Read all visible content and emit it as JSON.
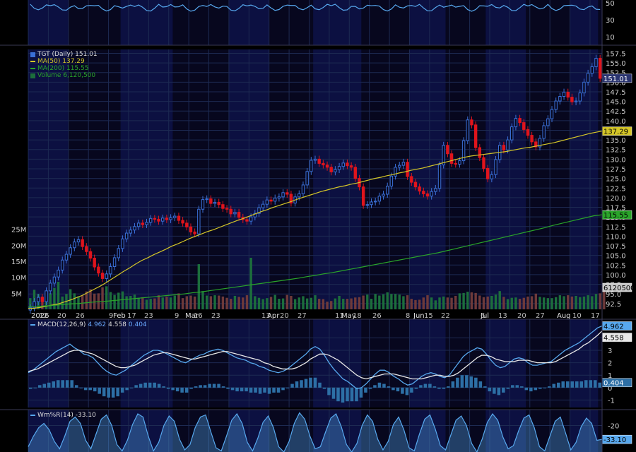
{
  "colors": {
    "background": "#000000",
    "pane": "#07071e",
    "grid": "#1d2a52",
    "band": "#10175e",
    "up": "#3a6fd6",
    "down": "#e0141c",
    "ma50": "#d4c628",
    "ma200": "#2aa52a",
    "vol_up": "#1c6e3c",
    "vol_down": "#6e3a3a",
    "macd": "#57a8ee",
    "signal": "#e8e8e8",
    "hist": "#2d6fa5",
    "willr": "#57a8ee",
    "text": "#cfcfcf"
  },
  "legend": {
    "price": {
      "icon": "candlestick-icon",
      "label": "TGT (Daily) 151.01"
    },
    "ma50": {
      "label": "MA(50) 137.29"
    },
    "ma200": {
      "label": "MA(200) 115.55"
    },
    "volume": {
      "icon": "volume-bars-icon",
      "label": "Volume 6,120,500"
    },
    "macd": {
      "label": "MACD(12,26,9)",
      "v1": "4.962",
      "v2": "4.558",
      "v3": "0.404"
    },
    "willr": {
      "icon": "line-icon",
      "label": "Wm%R(14) -33.10"
    }
  },
  "axis": {
    "price_ticks": [
      "157.5",
      "155.0",
      "152.5",
      "150.0",
      "147.5",
      "145.0",
      "142.5",
      "140.0",
      "137.5",
      "135.0",
      "132.5",
      "130.0",
      "127.5",
      "125.0",
      "122.5",
      "120.0",
      "117.5",
      "115.0",
      "112.5",
      "110.0",
      "107.5",
      "105.0",
      "102.5",
      "100.0",
      "97.5",
      "95.0",
      "92.5"
    ],
    "volume_ticks": [
      "25M",
      "20M",
      "15M",
      "10M",
      "5M"
    ],
    "macd_ticks": [
      "4",
      "3",
      "2",
      "1",
      "0",
      "-1"
    ],
    "willr_ticks": [
      "-20"
    ],
    "top_ticks": [
      "50",
      "30",
      "10"
    ],
    "month_labels": [
      "2026",
      "Feb",
      "Mar",
      "Apr",
      "May",
      "Jun",
      "Jul",
      "Aug"
    ],
    "day_labels": [
      "12",
      "20",
      "26",
      "9",
      "17",
      "23",
      "9",
      "16",
      "23",
      "13",
      "20",
      "27",
      "11",
      "18",
      "26",
      "8",
      "15",
      "22",
      "6",
      "13",
      "20",
      "27",
      "10",
      "17"
    ]
  },
  "badges": {
    "price": "151.01",
    "ma50": "137.29",
    "ma200": "115.55",
    "volume": "6120500",
    "macd1": "4.962",
    "macd2": "4.558",
    "macd3": "0.404",
    "willr": "-33.10"
  },
  "chart_data": [
    {
      "type": "candlestick",
      "title": "TGT (Daily)",
      "ylim": [
        91,
        158.5
      ],
      "last_close": 151.01,
      "closes": [
        91.4,
        93.0,
        94.1,
        93.0,
        95.8,
        97.8,
        99.4,
        101.2,
        103.8,
        105.3,
        107.0,
        108.5,
        109.1,
        107.3,
        106.0,
        104.3,
        102.0,
        100.4,
        99.0,
        100.2,
        102.1,
        104.4,
        106.8,
        109.3,
        110.8,
        111.6,
        112.5,
        113.4,
        113.0,
        113.6,
        114.6,
        114.4,
        113.9,
        114.7,
        114.3,
        114.8,
        115.2,
        114.1,
        113.4,
        112.4,
        111.1,
        110.6,
        117.0,
        119.5,
        119.7,
        118.5,
        118.8,
        118.2,
        117.2,
        117.0,
        115.8,
        116.2,
        114.9,
        114.3,
        113.9,
        115.0,
        115.9,
        117.4,
        118.3,
        119.4,
        119.1,
        119.9,
        120.2,
        121.3,
        120.9,
        118.6,
        120.2,
        121.0,
        123.3,
        126.8,
        129.7,
        130.0,
        128.9,
        128.5,
        127.9,
        126.7,
        127.3,
        128.1,
        129.0,
        128.3,
        127.9,
        125.0,
        122.8,
        118.0,
        118.2,
        118.9,
        119.1,
        120.4,
        120.9,
        123.0,
        125.6,
        127.9,
        128.4,
        129.2,
        125.5,
        124.0,
        122.8,
        121.7,
        121.0,
        120.4,
        121.6,
        122.4,
        128.5,
        133.6,
        131.4,
        128.9,
        128.7,
        129.6,
        134.8,
        140.2,
        138.9,
        133.0,
        130.4,
        127.6,
        124.9,
        126.0,
        129.9,
        133.6,
        132.4,
        135.0,
        138.4,
        140.6,
        139.5,
        137.7,
        136.2,
        134.5,
        133.2,
        135.4,
        138.7,
        140.5,
        142.9,
        145.1,
        146.3,
        147.4,
        146.1,
        144.9,
        145.1,
        147.2,
        150.0,
        152.3,
        154.0,
        156.2,
        151.0
      ]
    },
    {
      "type": "line",
      "series": [
        {
          "name": "MA(50)",
          "values": [
            91.2,
            91.3,
            91.5,
            91.8,
            92.1,
            92.4,
            92.9,
            93.4,
            94.0,
            94.6,
            95.4,
            96.2,
            97.0,
            97.9,
            98.9,
            99.9,
            100.9,
            101.8,
            102.8,
            103.7,
            104.4,
            105.2,
            105.9,
            106.6,
            107.4,
            108.0,
            108.7,
            109.4,
            110.0,
            110.6,
            111.2,
            111.7,
            112.3,
            112.9,
            113.5,
            114.1,
            114.6,
            115.2,
            115.8,
            116.4,
            116.9,
            117.5,
            118.0,
            118.5,
            119.0,
            119.6,
            120.1,
            120.6,
            121.1,
            121.6,
            122.0,
            122.4,
            122.8,
            123.1,
            123.5,
            123.8,
            124.2,
            124.6,
            125.0,
            125.3,
            125.7,
            126.0,
            126.4,
            126.7,
            127.1,
            127.4,
            127.7,
            128.1,
            128.5,
            128.9,
            129.3,
            129.7,
            130.1,
            130.5,
            130.8,
            131.0,
            131.2,
            131.4,
            131.6,
            131.8,
            132.0,
            132.3,
            132.6,
            132.9,
            133.1,
            133.4,
            133.7,
            134.0,
            134.3,
            134.7,
            135.1,
            135.5,
            135.9,
            136.3,
            136.7,
            137.0,
            137.29
          ]
        },
        {
          "name": "MA(200)",
          "values": [
            91.6,
            91.7,
            91.9,
            92.0,
            92.2,
            92.4,
            92.5,
            92.7,
            92.9,
            93.0,
            93.2,
            93.4,
            93.6,
            93.8,
            94.0,
            94.2,
            94.4,
            94.6,
            94.8,
            95.0,
            95.3,
            95.5,
            95.8,
            96.1,
            96.4,
            96.7,
            97.0,
            97.3,
            97.6,
            97.9,
            98.2,
            98.5,
            98.8,
            99.1,
            99.5,
            99.8,
            100.2,
            100.5,
            100.9,
            101.3,
            101.7,
            102.1,
            102.5,
            102.9,
            103.3,
            103.7,
            104.1,
            104.5,
            104.9,
            105.3,
            105.7,
            106.2,
            106.7,
            107.2,
            107.7,
            108.2,
            108.7,
            109.2,
            109.7,
            110.2,
            110.7,
            111.2,
            111.7,
            112.2,
            112.8,
            113.3,
            113.8,
            114.3,
            114.8,
            115.3,
            115.55
          ]
        }
      ]
    },
    {
      "type": "bar",
      "title": "Volume",
      "ylim": [
        0,
        28
      ],
      "unit": "M",
      "last": 6.1205,
      "values": [
        3.5,
        6.1,
        4.8,
        4.0,
        3.7,
        5.0,
        6.7,
        8.6,
        4.0,
        4.8,
        6.3,
        5.0,
        4.1,
        4.4,
        5.6,
        6.3,
        4.9,
        5.0,
        6.9,
        7.2,
        5.4,
        4.5,
        5.2,
        5.6,
        4.1,
        4.2,
        4.6,
        3.6,
        3.8,
        3.0,
        3.3,
        3.4,
        4.4,
        3.7,
        4.0,
        3.7,
        4.3,
        5.0,
        3.5,
        4.1,
        4.3,
        4.0,
        14.1,
        5.7,
        4.3,
        4.1,
        4.4,
        4.3,
        4.0,
        3.6,
        3.3,
        4.2,
        3.9,
        3.7,
        4.4,
        16.1,
        4.1,
        3.6,
        3.2,
        3.5,
        3.9,
        4.5,
        3.3,
        3.4,
        4.5,
        4.2,
        3.2,
        3.7,
        4.1,
        3.4,
        3.6,
        4.4,
        3.3,
        3.2,
        2.4,
        2.6,
        3.4,
        4.2,
        3.3,
        3.3,
        3.4,
        3.7,
        3.8,
        4.3,
        4.6,
        3.3,
        4.8,
        4.3,
        4.7,
        5.3,
        4.8,
        4.8,
        4.6,
        4.1,
        4.4,
        3.3,
        2.9,
        3.0,
        3.7,
        4.4,
        3.7,
        2.8,
        3.7,
        4.0,
        3.7,
        3.6,
        4.2,
        5.0,
        5.1,
        5.5,
        5.3,
        5.1,
        4.3,
        3.8,
        4.0,
        4.2,
        4.6,
        5.7,
        3.9,
        3.2,
        3.6,
        3.7,
        3.3,
        3.6,
        4.0,
        4.1,
        4.9,
        3.9,
        3.7,
        3.5,
        3.5,
        3.8,
        4.4,
        4.1,
        4.4,
        4.0,
        4.2,
        3.8,
        4.0,
        4.4,
        4.1,
        4.8,
        5.0,
        6.1
      ]
    },
    {
      "type": "line",
      "title": "MACD(12,26,9)",
      "ylim": [
        -1.6,
        5.5
      ],
      "series": [
        {
          "name": "MACD",
          "values": [
            1.2,
            1.4,
            1.7,
            2.0,
            2.3,
            2.6,
            2.9,
            3.1,
            3.3,
            3.5,
            3.2,
            3.0,
            2.7,
            2.6,
            2.4,
            2.0,
            1.6,
            1.3,
            1.1,
            1.0,
            1.2,
            1.4,
            1.7,
            2.0,
            2.3,
            2.6,
            2.8,
            3.0,
            3.0,
            2.9,
            2.7,
            2.5,
            2.3,
            2.1,
            2.0,
            2.2,
            2.4,
            2.6,
            2.7,
            2.9,
            3.0,
            3.1,
            3.0,
            2.8,
            2.6,
            2.4,
            2.3,
            2.2,
            2.0,
            1.9,
            1.7,
            1.6,
            1.4,
            1.3,
            1.2,
            1.3,
            1.5,
            1.8,
            2.1,
            2.4,
            2.7,
            3.1,
            3.3,
            3.1,
            2.6,
            2.0,
            1.5,
            1.1,
            0.7,
            0.5,
            0.2,
            -0.1,
            0.0,
            0.3,
            0.7,
            1.1,
            1.4,
            1.4,
            1.2,
            0.9,
            0.7,
            0.4,
            0.2,
            0.3,
            0.6,
            0.9,
            1.1,
            1.2,
            1.1,
            0.9,
            0.8,
            1.0,
            1.5,
            2.0,
            2.5,
            2.8,
            3.0,
            3.2,
            3.1,
            2.7,
            2.2,
            1.8,
            1.6,
            1.7,
            2.0,
            2.3,
            2.4,
            2.3,
            2.0,
            1.8,
            1.8,
            1.9,
            2.0,
            2.1,
            2.4,
            2.7,
            3.0,
            3.2,
            3.4,
            3.6,
            3.9,
            4.2,
            4.5,
            4.8,
            4.962
          ]
        },
        {
          "name": "Signal",
          "values": [
            1.3,
            1.4,
            1.5,
            1.7,
            1.9,
            2.1,
            2.3,
            2.5,
            2.7,
            2.9,
            3.0,
            3.0,
            2.9,
            2.8,
            2.7,
            2.5,
            2.3,
            2.1,
            1.9,
            1.7,
            1.6,
            1.6,
            1.7,
            1.8,
            2.0,
            2.2,
            2.4,
            2.6,
            2.7,
            2.8,
            2.8,
            2.7,
            2.6,
            2.5,
            2.4,
            2.3,
            2.3,
            2.4,
            2.5,
            2.6,
            2.7,
            2.8,
            2.9,
            2.9,
            2.8,
            2.7,
            2.6,
            2.5,
            2.4,
            2.3,
            2.2,
            2.0,
            1.9,
            1.7,
            1.6,
            1.5,
            1.5,
            1.5,
            1.6,
            1.8,
            2.0,
            2.3,
            2.5,
            2.7,
            2.7,
            2.6,
            2.4,
            2.2,
            1.9,
            1.6,
            1.3,
            1.0,
            0.8,
            0.7,
            0.8,
            0.9,
            1.0,
            1.1,
            1.1,
            1.1,
            1.0,
            0.9,
            0.8,
            0.7,
            0.7,
            0.7,
            0.8,
            0.9,
            1.0,
            1.0,
            0.9,
            0.9,
            1.0,
            1.2,
            1.5,
            1.8,
            2.1,
            2.4,
            2.6,
            2.6,
            2.5,
            2.3,
            2.2,
            2.1,
            2.1,
            2.1,
            2.2,
            2.2,
            2.2,
            2.1,
            2.0,
            2.0,
            2.0,
            2.0,
            2.1,
            2.3,
            2.5,
            2.7,
            2.9,
            3.1,
            3.4,
            3.6,
            3.9,
            4.2,
            4.558
          ]
        },
        {
          "name": "Histogram",
          "values": [
            -0.1,
            0.0,
            0.2,
            0.3,
            0.4,
            0.5,
            0.6,
            0.6,
            0.6,
            0.6,
            0.2,
            0.0,
            -0.2,
            -0.2,
            -0.3,
            -0.5,
            -0.7,
            -0.8,
            -0.8,
            -0.7,
            -0.4,
            -0.2,
            0.0,
            0.2,
            0.3,
            0.4,
            0.4,
            0.4,
            0.3,
            0.1,
            -0.1,
            -0.2,
            -0.3,
            -0.4,
            -0.4,
            -0.1,
            0.1,
            0.2,
            0.2,
            0.3,
            0.3,
            0.3,
            0.1,
            -0.1,
            -0.2,
            -0.3,
            -0.3,
            -0.3,
            -0.4,
            -0.4,
            -0.5,
            -0.4,
            -0.5,
            -0.4,
            -0.4,
            -0.2,
            0.0,
            0.3,
            0.5,
            0.6,
            0.7,
            0.8,
            0.8,
            0.4,
            -0.1,
            -0.6,
            -0.9,
            -1.1,
            -1.2,
            -1.1,
            -1.1,
            -1.1,
            -0.8,
            -0.4,
            -0.1,
            0.2,
            0.4,
            0.3,
            0.1,
            -0.2,
            -0.3,
            -0.5,
            -0.6,
            -0.4,
            -0.1,
            0.2,
            0.3,
            0.3,
            0.1,
            -0.1,
            -0.1,
            0.1,
            0.5,
            0.8,
            1.0,
            1.0,
            0.9,
            0.8,
            0.5,
            0.1,
            -0.3,
            -0.5,
            -0.6,
            -0.4,
            -0.1,
            0.2,
            0.2,
            0.1,
            -0.2,
            -0.3,
            -0.2,
            -0.1,
            0.0,
            0.1,
            0.3,
            0.4,
            0.5,
            0.5,
            0.5,
            0.5,
            0.5,
            0.6,
            0.6,
            0.6,
            0.404
          ]
        }
      ]
    },
    {
      "type": "line",
      "title": "Wm%R(14)",
      "ylim": [
        -45,
        -5
      ],
      "series": [
        {
          "name": "Wm%R(14)",
          "values": [
            -40,
            -30,
            -22,
            -18,
            -24,
            -35,
            -42,
            -30,
            -16,
            -12,
            -18,
            -34,
            -42,
            -28,
            -14,
            -10,
            -20,
            -38,
            -44,
            -34,
            -19,
            -9,
            -12,
            -30,
            -44,
            -36,
            -20,
            -11,
            -16,
            -33,
            -43,
            -38,
            -22,
            -12,
            -10,
            -26,
            -41,
            -44,
            -30,
            -15,
            -9,
            -18,
            -36,
            -44,
            -32,
            -17,
            -11,
            -22,
            -40,
            -45,
            -35,
            -18,
            -8,
            -14,
            -30,
            -42,
            -40,
            -26,
            -13,
            -9,
            -21,
            -38,
            -45,
            -37,
            -20,
            -10,
            -16,
            -33,
            -43,
            -35,
            -19,
            -12,
            -24,
            -41,
            -44,
            -28,
            -14,
            -10,
            -23,
            -39,
            -43,
            -29,
            -15,
            -11,
            -20,
            -37,
            -45,
            -33,
            -17,
            -9,
            -15,
            -31,
            -42,
            -39,
            -25,
            -13,
            -10,
            -22,
            -40,
            -44,
            -30,
            -16,
            -12,
            -27,
            -43,
            -36,
            -21,
            -13,
            -18,
            -34,
            -33.1
          ]
        }
      ]
    }
  ]
}
